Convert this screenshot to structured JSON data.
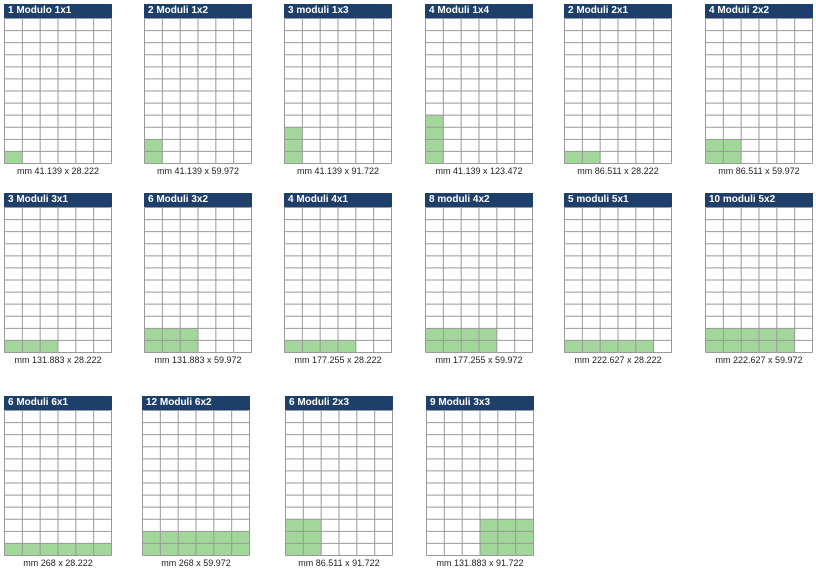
{
  "grid": {
    "cols": 6,
    "rows": 12,
    "line_color": "#999999",
    "fill_color": "#a3d69a",
    "header_color": "#1f3f6b"
  },
  "cards": [
    {
      "title": "1 Modulo 1x1",
      "dims": "mm 41.139 x 28.222",
      "fill": {
        "col": 0,
        "row_from_bottom": 0,
        "w": 1,
        "h": 1
      }
    },
    {
      "title": "2 Moduli 1x2",
      "dims": "mm 41.139 x 59.972",
      "fill": {
        "col": 0,
        "row_from_bottom": 0,
        "w": 1,
        "h": 2
      }
    },
    {
      "title": "3 moduli 1x3",
      "dims": "mm 41.139 x 91.722",
      "fill": {
        "col": 0,
        "row_from_bottom": 0,
        "w": 1,
        "h": 3
      }
    },
    {
      "title": "4 Moduli 1x4",
      "dims": "mm 41.139 x 123.472",
      "fill": {
        "col": 0,
        "row_from_bottom": 0,
        "w": 1,
        "h": 4
      }
    },
    {
      "title": "2 Moduli 2x1",
      "dims": "mm 86.511 x 28.222",
      "fill": {
        "col": 0,
        "row_from_bottom": 0,
        "w": 2,
        "h": 1
      }
    },
    {
      "title": "4 Moduli 2x2",
      "dims": "mm 86.511 x 59.972",
      "fill": {
        "col": 0,
        "row_from_bottom": 0,
        "w": 2,
        "h": 2
      }
    },
    {
      "title": "3 Moduli 3x1",
      "dims": "mm 131.883 x 28.222",
      "fill": {
        "col": 0,
        "row_from_bottom": 0,
        "w": 3,
        "h": 1
      }
    },
    {
      "title": "6 Moduli 3x2",
      "dims": "mm 131.883 x 59.972",
      "fill": {
        "col": 0,
        "row_from_bottom": 0,
        "w": 3,
        "h": 2
      }
    },
    {
      "title": "4 Moduli 4x1",
      "dims": "mm 177.255 x 28.222",
      "fill": {
        "col": 0,
        "row_from_bottom": 0,
        "w": 4,
        "h": 1
      }
    },
    {
      "title": "8 moduli 4x2",
      "dims": "mm 177.255 x 59.972",
      "fill": {
        "col": 0,
        "row_from_bottom": 0,
        "w": 4,
        "h": 2
      }
    },
    {
      "title": "5 moduli 5x1",
      "dims": "mm 222.627 x 28.222",
      "fill": {
        "col": 0,
        "row_from_bottom": 0,
        "w": 5,
        "h": 1
      }
    },
    {
      "title": "10 moduli 5x2",
      "dims": "mm 222.627 x 59.972",
      "fill": {
        "col": 0,
        "row_from_bottom": 0,
        "w": 5,
        "h": 2
      }
    },
    {
      "title": "6 Moduli 6x1",
      "dims": "mm 268 x 28.222",
      "fill": {
        "col": 0,
        "row_from_bottom": 0,
        "w": 6,
        "h": 1
      }
    },
    {
      "title": "12 Moduli 6x2",
      "dims": "mm 268 x 59.972",
      "fill": {
        "col": 0,
        "row_from_bottom": 0,
        "w": 6,
        "h": 2
      }
    },
    {
      "title": "6 Moduli 2x3",
      "dims": "mm 86.511 x 91.722",
      "fill": {
        "col": 0,
        "row_from_bottom": 0,
        "w": 2,
        "h": 3
      }
    },
    {
      "title": "9 Moduli 3x3",
      "dims": "mm 131.883 x 91.722",
      "fill": {
        "col": 3,
        "row_from_bottom": 0,
        "w": 3,
        "h": 3
      }
    }
  ]
}
